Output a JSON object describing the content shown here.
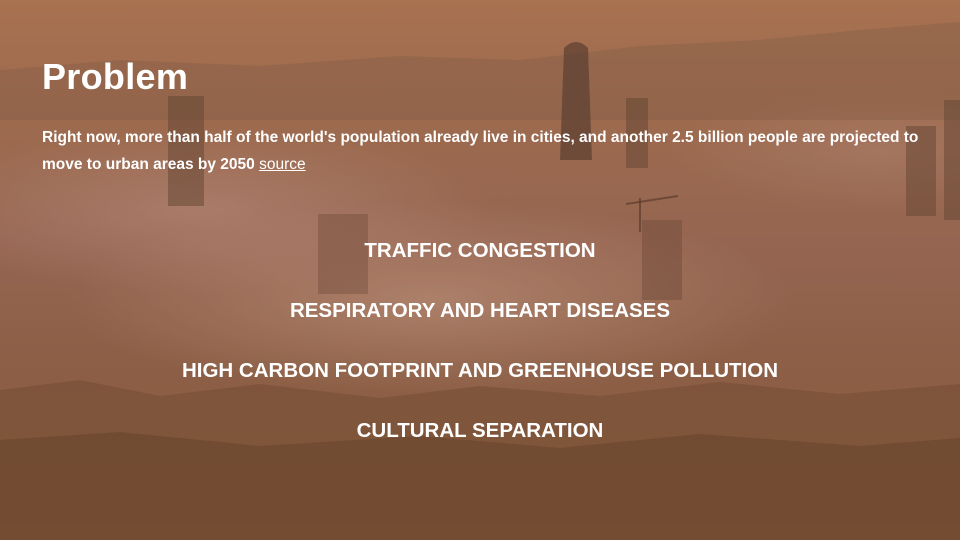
{
  "slide": {
    "title": "Problem",
    "description": "Right now, more than half of the world's population already live in cities, and another 2.5 billion people are projected to move to urban areas by 2050",
    "source_link": "source",
    "issues": [
      "TRAFFIC CONGESTION",
      "RESPIRATORY AND HEART DISEASES",
      "HIGH CARBON FOOTPRINT AND GREENHOUSE POLLUTION",
      "CULTURAL SEPARATION"
    ]
  },
  "colors": {
    "text": "#ffffff",
    "background_tone": "#a06c52"
  }
}
